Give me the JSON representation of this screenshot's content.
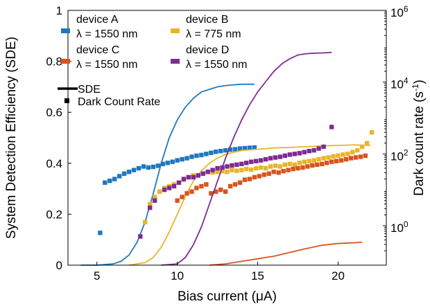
{
  "chart_data": {
    "type": "line",
    "title": "",
    "xlabel": "Bias current (μA)",
    "ylabel_left": "System Detection Efficiency (SDE)",
    "ylabel_right_base": "Dark count rate (s",
    "ylabel_right_sup": "-1",
    "ylabel_right_end": ")",
    "xlim": [
      3.2,
      23
    ],
    "ylim_left": [
      0,
      1
    ],
    "ylim_right_log10": [
      -1.1,
      6
    ],
    "right_axis_scale": "log",
    "grid": false,
    "legend_position": "top-left",
    "x_ticks": [
      5,
      10,
      15,
      20
    ],
    "y_left_ticks": [
      0,
      0.2,
      0.4,
      0.6,
      0.8,
      1
    ],
    "y_left_tick_labels": [
      "0",
      "0.2",
      "0.4",
      "0.6",
      "0.8",
      "1"
    ],
    "y_right_ticks_log10": [
      0,
      2,
      4,
      6
    ],
    "y_right_tick_labels": [
      {
        "base": "10",
        "exp": "0"
      },
      {
        "base": "10",
        "exp": "2"
      },
      {
        "base": "10",
        "exp": "4"
      },
      {
        "base": "10",
        "exp": "6"
      }
    ],
    "legend": {
      "style_entries": [
        {
          "label": "SDE",
          "marker": "line"
        },
        {
          "label": "Dark Count Rate",
          "marker": "square"
        }
      ]
    },
    "series": [
      {
        "name": "device A",
        "wavelength": "λ = 1550 nm",
        "color": "#1f77c0",
        "sde": [
          [
            4,
            0
          ],
          [
            5,
            0
          ],
          [
            6,
            0.005
          ],
          [
            6.5,
            0.015
          ],
          [
            7,
            0.04
          ],
          [
            7.5,
            0.09
          ],
          [
            8,
            0.17
          ],
          [
            8.5,
            0.28
          ],
          [
            9,
            0.4
          ],
          [
            9.5,
            0.5
          ],
          [
            10,
            0.57
          ],
          [
            10.5,
            0.62
          ],
          [
            11,
            0.655
          ],
          [
            11.5,
            0.68
          ],
          [
            12,
            0.69
          ],
          [
            12.5,
            0.7
          ],
          [
            13,
            0.705
          ],
          [
            13.5,
            0.708
          ],
          [
            14,
            0.71
          ],
          [
            14.8,
            0.71
          ]
        ],
        "dcr_log10": [
          [
            5.2,
            -0.2
          ],
          [
            5.5,
            1.2
          ],
          [
            5.8,
            1.25
          ],
          [
            6.1,
            1.3
          ],
          [
            6.4,
            1.38
          ],
          [
            6.7,
            1.45
          ],
          [
            7.0,
            1.5
          ],
          [
            7.3,
            1.55
          ],
          [
            7.6,
            1.6
          ],
          [
            7.9,
            1.65
          ],
          [
            8.2,
            1.62
          ],
          [
            8.5,
            1.64
          ],
          [
            8.8,
            1.67
          ],
          [
            9.1,
            1.72
          ],
          [
            9.4,
            1.75
          ],
          [
            9.7,
            1.78
          ],
          [
            10.0,
            1.82
          ],
          [
            10.3,
            1.85
          ],
          [
            10.6,
            1.88
          ],
          [
            10.9,
            1.92
          ],
          [
            11.2,
            1.95
          ],
          [
            11.5,
            1.97
          ],
          [
            11.8,
            2.0
          ],
          [
            12.1,
            2.03
          ],
          [
            12.4,
            2.06
          ],
          [
            12.7,
            2.08
          ],
          [
            13.0,
            2.1
          ],
          [
            13.3,
            2.12
          ],
          [
            13.6,
            2.13
          ],
          [
            13.9,
            2.15
          ],
          [
            14.2,
            2.16
          ],
          [
            14.5,
            2.17
          ],
          [
            14.8,
            2.18
          ]
        ]
      },
      {
        "name": "device B",
        "wavelength": "λ = 775 nm",
        "color": "#e8b528",
        "sde": [
          [
            7,
            0
          ],
          [
            8,
            0.01
          ],
          [
            8.5,
            0.03
          ],
          [
            9,
            0.07
          ],
          [
            9.5,
            0.13
          ],
          [
            10,
            0.2
          ],
          [
            10.5,
            0.27
          ],
          [
            11,
            0.33
          ],
          [
            11.5,
            0.37
          ],
          [
            12,
            0.4
          ],
          [
            12.5,
            0.42
          ],
          [
            13,
            0.435
          ],
          [
            14,
            0.45
          ],
          [
            15,
            0.455
          ],
          [
            16,
            0.46
          ],
          [
            17,
            0.462
          ],
          [
            18,
            0.465
          ],
          [
            19,
            0.468
          ],
          [
            20,
            0.47
          ],
          [
            21,
            0.472
          ],
          [
            22,
            0.47
          ]
        ],
        "dcr_log10": [
          [
            8,
            0.1
          ],
          [
            8.3,
            0.6
          ],
          [
            8.6,
            0.8
          ],
          [
            8.9,
            0.95
          ],
          [
            9.2,
            1.05
          ],
          [
            9.5,
            1.1
          ],
          [
            9.8,
            1.15
          ],
          [
            10.1,
            1.2
          ],
          [
            10.4,
            1.28
          ],
          [
            10.7,
            1.35
          ],
          [
            11.0,
            1.4
          ],
          [
            11.3,
            1.4
          ],
          [
            11.6,
            1.45
          ],
          [
            11.9,
            1.5
          ],
          [
            12.2,
            1.48
          ],
          [
            12.5,
            1.5
          ],
          [
            12.8,
            1.52
          ],
          [
            13.1,
            1.5
          ],
          [
            13.4,
            1.55
          ],
          [
            13.7,
            1.53
          ],
          [
            14.0,
            1.55
          ],
          [
            14.3,
            1.58
          ],
          [
            14.6,
            1.56
          ],
          [
            14.9,
            1.6
          ],
          [
            15.2,
            1.62
          ],
          [
            15.5,
            1.6
          ],
          [
            15.8,
            1.65
          ],
          [
            16.1,
            1.67
          ],
          [
            16.4,
            1.65
          ],
          [
            16.7,
            1.7
          ],
          [
            17.0,
            1.72
          ],
          [
            17.3,
            1.7
          ],
          [
            17.6,
            1.75
          ],
          [
            17.9,
            1.78
          ],
          [
            18.2,
            1.8
          ],
          [
            18.5,
            1.82
          ],
          [
            18.8,
            1.85
          ],
          [
            19.1,
            1.88
          ],
          [
            19.4,
            1.9
          ],
          [
            19.7,
            1.93
          ],
          [
            20.0,
            1.95
          ],
          [
            20.3,
            1.98
          ],
          [
            20.6,
            2.0
          ],
          [
            20.9,
            2.05
          ],
          [
            21.2,
            2.1
          ],
          [
            21.5,
            2.2
          ],
          [
            21.8,
            2.3
          ],
          [
            22.1,
            2.6
          ]
        ]
      },
      {
        "name": "device C",
        "wavelength": "λ = 1550 nm",
        "color": "#d9541e",
        "sde": [
          [
            12,
            0
          ],
          [
            13,
            0.005
          ],
          [
            14,
            0.015
          ],
          [
            15,
            0.025
          ],
          [
            16,
            0.035
          ],
          [
            17,
            0.05
          ],
          [
            18,
            0.065
          ],
          [
            19,
            0.078
          ],
          [
            20,
            0.085
          ],
          [
            21,
            0.088
          ],
          [
            21.5,
            0.09
          ]
        ],
        "dcr_log10": [
          [
            10,
            0.7
          ],
          [
            10.3,
            0.8
          ],
          [
            10.6,
            0.9
          ],
          [
            10.9,
            0.95
          ],
          [
            11.2,
            1.05
          ],
          [
            11.5,
            1.1
          ],
          [
            11.8,
            1.15
          ],
          [
            12.1,
            0.9
          ],
          [
            12.4,
            0.95
          ],
          [
            12.7,
            1.0
          ],
          [
            13.0,
            0.95
          ],
          [
            13.3,
            1.1
          ],
          [
            13.6,
            1.15
          ],
          [
            13.9,
            1.2
          ],
          [
            14.2,
            1.28
          ],
          [
            14.5,
            1.3
          ],
          [
            14.8,
            1.35
          ],
          [
            15.1,
            1.38
          ],
          [
            15.4,
            1.42
          ],
          [
            15.7,
            1.45
          ],
          [
            16.0,
            1.5
          ],
          [
            16.3,
            1.48
          ],
          [
            16.6,
            1.52
          ],
          [
            16.9,
            1.55
          ],
          [
            17.2,
            1.58
          ],
          [
            17.5,
            1.6
          ],
          [
            17.8,
            1.62
          ],
          [
            18.1,
            1.65
          ],
          [
            18.4,
            1.68
          ],
          [
            18.7,
            1.7
          ],
          [
            19.0,
            1.72
          ],
          [
            19.3,
            1.75
          ],
          [
            19.6,
            1.78
          ],
          [
            19.9,
            1.8
          ],
          [
            20.2,
            1.82
          ],
          [
            20.5,
            1.85
          ],
          [
            20.8,
            1.88
          ],
          [
            21.1,
            1.9
          ],
          [
            21.4,
            1.92
          ],
          [
            21.7,
            1.95
          ]
        ]
      },
      {
        "name": "device D",
        "wavelength": "λ = 1550 nm",
        "color": "#7f2b91",
        "sde": [
          [
            9,
            0
          ],
          [
            10,
            0.005
          ],
          [
            10.5,
            0.03
          ],
          [
            11,
            0.08
          ],
          [
            11.5,
            0.15
          ],
          [
            12,
            0.24
          ],
          [
            12.5,
            0.33
          ],
          [
            13,
            0.42
          ],
          [
            13.5,
            0.5
          ],
          [
            14,
            0.57
          ],
          [
            14.5,
            0.63
          ],
          [
            15,
            0.68
          ],
          [
            15.5,
            0.72
          ],
          [
            16,
            0.76
          ],
          [
            16.5,
            0.79
          ],
          [
            17,
            0.81
          ],
          [
            17.5,
            0.825
          ],
          [
            18,
            0.83
          ],
          [
            18.5,
            0.832
          ],
          [
            19,
            0.833
          ],
          [
            19.6,
            0.835
          ]
        ],
        "dcr_log10": [
          [
            7.7,
            -0.3
          ],
          [
            8.3,
            0.5
          ],
          [
            8.6,
            0.7
          ],
          [
            9.2,
            1.0
          ],
          [
            9.5,
            1.05
          ],
          [
            9.8,
            1.1
          ],
          [
            10.1,
            1.2
          ],
          [
            10.4,
            1.3
          ],
          [
            10.7,
            1.35
          ],
          [
            11.0,
            1.35
          ],
          [
            11.3,
            1.4
          ],
          [
            11.6,
            1.45
          ],
          [
            11.9,
            1.5
          ],
          [
            12.2,
            1.55
          ],
          [
            12.5,
            1.6
          ],
          [
            12.8,
            1.62
          ],
          [
            13.1,
            1.65
          ],
          [
            13.4,
            1.68
          ],
          [
            13.7,
            1.7
          ],
          [
            14.0,
            1.72
          ],
          [
            14.3,
            1.75
          ],
          [
            14.6,
            1.78
          ],
          [
            14.9,
            1.8
          ],
          [
            15.2,
            1.82
          ],
          [
            15.5,
            1.85
          ],
          [
            15.8,
            1.88
          ],
          [
            16.1,
            1.9
          ],
          [
            16.4,
            1.92
          ],
          [
            16.7,
            1.95
          ],
          [
            17.0,
            1.98
          ],
          [
            17.3,
            2.0
          ],
          [
            17.6,
            2.02
          ],
          [
            17.9,
            2.05
          ],
          [
            18.2,
            2.08
          ],
          [
            18.5,
            2.1
          ],
          [
            18.8,
            2.15
          ],
          [
            19.1,
            2.2
          ],
          [
            19.6,
            2.75
          ]
        ]
      }
    ]
  }
}
